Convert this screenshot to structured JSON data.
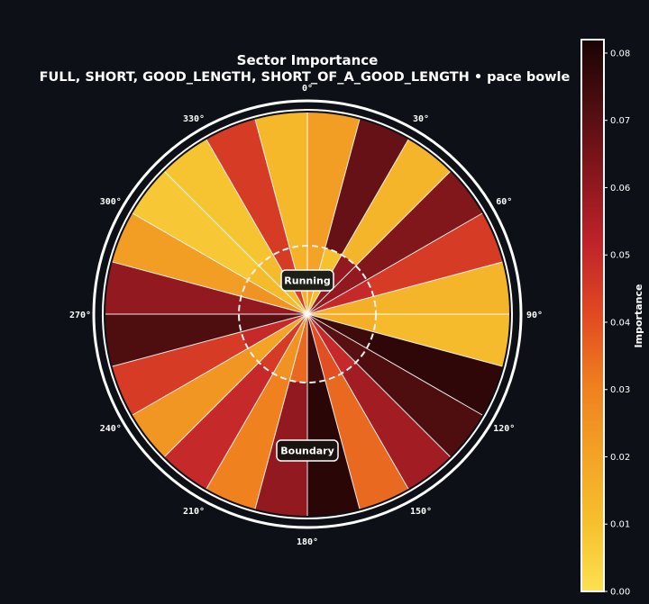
{
  "chart_data": {
    "type": "polar-sector-heatmap",
    "title": "Sector Importance",
    "subtitle": "FULL, SHORT, GOOD_LENGTH, SHORT_OF_A_GOOD_LENGTH • pace bowle",
    "colorbar_label": "Importance",
    "colorbar_range": [
      0.0,
      0.082
    ],
    "colorbar_ticks": [
      "0.00",
      "0.01",
      "0.02",
      "0.03",
      "0.04",
      "0.05",
      "0.06",
      "0.07",
      "0.08"
    ],
    "colormap": [
      "#fde050",
      "#f6c02d",
      "#f3a225",
      "#ef7f1f",
      "#e14a22",
      "#c1242a",
      "#8a171d",
      "#4f0e10",
      "#1a0303"
    ],
    "angle_labels": [
      "0°",
      "30°",
      "60°",
      "90°",
      "120°",
      "150°",
      "180°",
      "210°",
      "240°",
      "270°",
      "300°",
      "330°"
    ],
    "zone_labels": {
      "inner": "Running",
      "outer": "Boundary"
    },
    "sector_width_deg": 15,
    "outer_values": [
      0.022,
      0.068,
      0.014,
      0.063,
      0.045,
      0.014,
      0.012,
      0.078,
      0.072,
      0.057,
      0.035,
      0.079,
      0.06,
      0.03,
      0.05,
      0.024,
      0.045,
      0.072,
      0.06,
      0.022,
      0.008,
      0.009,
      0.045,
      0.013
    ],
    "inner_values": [
      0.02,
      0.01,
      0.06,
      0.06,
      0.05,
      0.016,
      0.016,
      0.075,
      0.07,
      0.05,
      0.04,
      0.075,
      0.035,
      0.025,
      0.045,
      0.02,
      0.05,
      0.07,
      0.06,
      0.025,
      0.012,
      0.012,
      0.045,
      0.015
    ]
  }
}
